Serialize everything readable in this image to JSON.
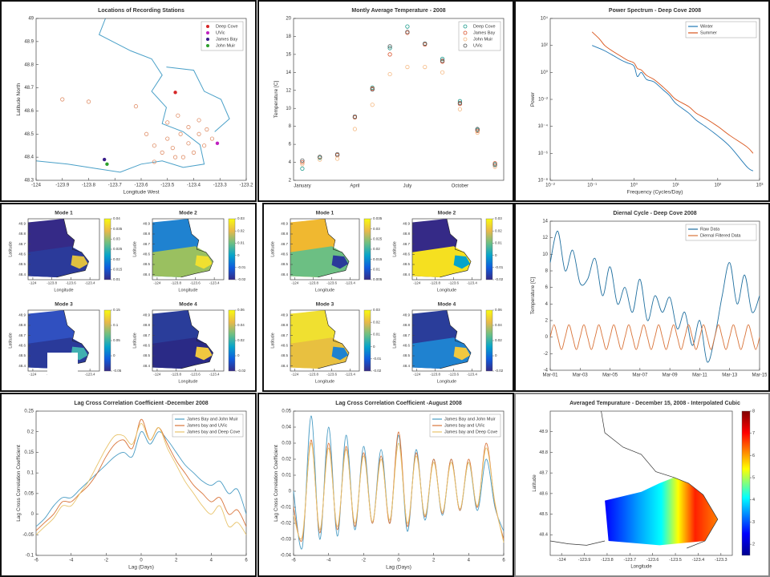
{
  "chart_data": [
    {
      "type": "scatter",
      "title": "Locations of Recording Stations",
      "xlabel": "Longitude West",
      "ylabel": "Latitude North",
      "xlim": [
        -124,
        -123.2
      ],
      "ylim": [
        48.3,
        49
      ],
      "xticks": [
        -124,
        -123.9,
        -123.8,
        -123.7,
        -123.6,
        -123.5,
        -123.4,
        -123.3,
        -123.2
      ],
      "yticks": [
        48.3,
        48.4,
        48.5,
        48.6,
        48.7,
        48.8,
        48.9,
        49
      ],
      "legend": "ne",
      "map": true,
      "series": [
        {
          "name": "Deep Cove",
          "color": "#d62728",
          "marker": "dot",
          "x": [
            -123.47
          ],
          "values": [
            48.68
          ]
        },
        {
          "name": "UVic",
          "color": "#c020c0",
          "marker": "dot",
          "x": [
            -123.31
          ],
          "values": [
            48.46
          ]
        },
        {
          "name": "James Bay",
          "color": "#3a1d8a",
          "marker": "dot",
          "x": [
            -123.74
          ],
          "values": [
            48.39
          ]
        },
        {
          "name": "John Muir",
          "color": "#2ca02c",
          "marker": "dot",
          "x": [
            -123.73
          ],
          "values": [
            48.37
          ]
        },
        {
          "color": "#e0906a",
          "marker": "ring",
          "x": [
            -123.9,
            -123.8,
            -123.62,
            -123.55,
            -123.5,
            -123.45,
            -123.42,
            -123.38,
            -123.35,
            -123.52,
            -123.48,
            -123.44,
            -123.4,
            -123.36,
            -123.58,
            -123.5,
            -123.46,
            -123.42,
            -123.38,
            -123.33,
            -123.55,
            -123.47
          ],
          "values": [
            48.65,
            48.64,
            48.62,
            48.45,
            48.48,
            48.5,
            48.46,
            48.5,
            48.52,
            48.42,
            48.44,
            48.4,
            48.42,
            48.45,
            48.5,
            48.55,
            48.58,
            48.53,
            48.56,
            48.48,
            48.38,
            48.4
          ]
        }
      ]
    },
    {
      "type": "scatter",
      "title": "Montly Average Temperature - 2008",
      "ylabel": "Temperature [C]",
      "categories": [
        "January",
        null,
        null,
        "April",
        null,
        null,
        "July",
        null,
        null,
        "October",
        null,
        null
      ],
      "ylim": [
        2,
        20
      ],
      "yticks": [
        2,
        4,
        6,
        8,
        10,
        12,
        14,
        16,
        18,
        20
      ],
      "legend": "ne",
      "series": [
        {
          "name": "Deep Cove",
          "color": "#1a9a8a",
          "marker": "ring",
          "values": [
            3.3,
            4.5,
            4.8,
            9,
            12.3,
            16.7,
            19.1,
            17.2,
            15.5,
            10.8,
            7.6,
            3.8
          ]
        },
        {
          "name": "James Bay",
          "color": "#d9502a",
          "marker": "ring",
          "values": [
            4,
            4.6,
            4.8,
            9,
            12.2,
            16,
            18.4,
            17.1,
            15.2,
            10.5,
            7.5,
            3.9
          ]
        },
        {
          "name": "John Muir",
          "color": "#f5b880",
          "marker": "ring",
          "values": [
            3.8,
            4.3,
            4.4,
            7.7,
            10.4,
            13.8,
            14.6,
            14.6,
            14,
            9.9,
            7.3,
            3.5
          ]
        },
        {
          "name": "UVic",
          "color": "#555555",
          "marker": "ring",
          "values": [
            4.2,
            4.6,
            4.9,
            9.1,
            12.1,
            16.9,
            18.5,
            17.2,
            15.3,
            10.6,
            7.7,
            3.7
          ]
        }
      ]
    },
    {
      "type": "line",
      "title": "Power Spectrum - Deep Cove 2008",
      "xlabel": "Frequency (Cycles/Day)",
      "ylabel": "Power",
      "xlog": true,
      "ylog": true,
      "xlim": [
        0.01,
        1000
      ],
      "ylim": [
        1e-08,
        10000
      ],
      "xticks": [
        {
          "value": 0.01,
          "label": "10⁻²"
        },
        {
          "value": 0.1,
          "label": "10⁻¹"
        },
        {
          "value": 1,
          "label": "10⁰"
        },
        {
          "value": 10,
          "label": "10¹"
        },
        {
          "value": 100,
          "label": "10²"
        },
        {
          "value": 1000,
          "label": "10³"
        }
      ],
      "yticks": [
        {
          "value": 1e-08,
          "label": "10⁻⁸"
        },
        {
          "value": 1e-06,
          "label": "10⁻⁶"
        },
        {
          "value": 0.0001,
          "label": "10⁻⁴"
        },
        {
          "value": 0.01,
          "label": "10⁻²"
        },
        {
          "value": 1,
          "label": "10⁰"
        },
        {
          "value": 100,
          "label": "10²"
        },
        {
          "value": 10000,
          "label": "10⁴"
        }
      ],
      "legend": "ne",
      "x": [
        0.1,
        0.15,
        0.2,
        0.3,
        0.5,
        0.7,
        1,
        1.2,
        1.5,
        2,
        3,
        5,
        7,
        10,
        20,
        30,
        50,
        100,
        200,
        500,
        700
      ],
      "series": [
        {
          "name": "Winter",
          "color": "#1f77b4",
          "values": [
            100,
            60,
            40,
            20,
            8,
            5,
            3,
            0.5,
            1,
            0.3,
            0.2,
            0.05,
            0.02,
            0.005,
            0.001,
            0.0003,
            0.0001,
            2e-05,
            3e-06,
            1e-07,
            5e-08
          ]
        },
        {
          "name": "Summer",
          "color": "#d9541a",
          "values": [
            1000,
            300,
            100,
            40,
            15,
            8,
            5,
            2,
            1.5,
            0.6,
            0.3,
            0.08,
            0.03,
            0.01,
            0.003,
            0.001,
            0.0004,
            0.0001,
            2e-05,
            3e-06,
            1e-06
          ]
        }
      ]
    },
    {
      "type": "modes",
      "xlabel": "Longitude",
      "ylabel": "Latitude",
      "xlim": [
        -124.05,
        -123.3
      ],
      "ylim": [
        48.35,
        48.95
      ],
      "xticks": [
        -124,
        -123.8,
        -123.6,
        -123.4
      ],
      "yticks": [
        48.4,
        48.5,
        48.6,
        48.7,
        48.8,
        48.9
      ],
      "modes": [
        {
          "title": "Mode 1",
          "cticks": [
            0.01,
            0.015,
            0.02,
            0.025,
            0.03,
            0.035,
            0.04
          ]
        },
        {
          "title": "Mode 2",
          "cticks": [
            -0.02,
            -0.01,
            0,
            0.01,
            0.02,
            0.03
          ]
        },
        {
          "title": "Mode 3",
          "cticks": [
            -0.05,
            0,
            0.05,
            0.1,
            0.15
          ]
        },
        {
          "title": "Mode 4",
          "cticks": [
            -0.02,
            0,
            0.02,
            0.04,
            0.06
          ]
        }
      ]
    },
    {
      "type": "modes",
      "xlabel": "Longitude",
      "ylabel": "Latitude",
      "xlim": [
        -124.05,
        -123.3
      ],
      "ylim": [
        48.35,
        48.95
      ],
      "xticks": [
        -124,
        -123.8,
        -123.6,
        -123.4
      ],
      "yticks": [
        48.4,
        48.5,
        48.6,
        48.7,
        48.8,
        48.9
      ],
      "modes": [
        {
          "title": "Mode 1",
          "cticks": [
            0.005,
            0.01,
            0.015,
            0.02,
            0.025,
            0.03,
            0.035
          ]
        },
        {
          "title": "Mode 2",
          "cticks": [
            -0.02,
            -0.01,
            0,
            0.01,
            0.02,
            0.03
          ]
        },
        {
          "title": "Mode 3",
          "cticks": [
            -0.02,
            -0.01,
            0,
            0.01,
            0.02,
            0.03
          ]
        },
        {
          "title": "Mode 4",
          "cticks": [
            -0.02,
            0,
            0.02,
            0.04,
            0.06
          ]
        }
      ]
    },
    {
      "type": "line",
      "title": "Diernal Cycle - Deep Cove 2008",
      "ylabel": "Temperature [C]",
      "xlim": [
        1,
        15
      ],
      "ylim": [
        -4,
        14
      ],
      "xticks": [
        {
          "value": 1,
          "label": "Mar-01"
        },
        {
          "value": 3,
          "label": "Mar-03"
        },
        {
          "value": 5,
          "label": "Mar-05"
        },
        {
          "value": 7,
          "label": "Mar-07"
        },
        {
          "value": 9,
          "label": "Mar-09"
        },
        {
          "value": 11,
          "label": "Mar-11"
        },
        {
          "value": 13,
          "label": "Mar-13"
        },
        {
          "value": 15,
          "label": "Mar-15"
        }
      ],
      "yticks": [
        -4,
        -2,
        0,
        2,
        4,
        6,
        8,
        10,
        12,
        14
      ],
      "legend": "ne",
      "series": [
        {
          "name": "Raw Data",
          "color": "#1f6f9f",
          "x": [
            1,
            1.5,
            2,
            2.5,
            3,
            3.5,
            4,
            4.5,
            5,
            5.5,
            6,
            6.5,
            7,
            7.5,
            8,
            8.5,
            9,
            9.5,
            10,
            10.5,
            11,
            11.5,
            12,
            12.5,
            13,
            13.5,
            14,
            14.5,
            15
          ],
          "values": [
            9,
            12.8,
            8,
            10.5,
            6.5,
            7,
            9.5,
            5,
            8.5,
            4,
            6,
            3,
            7,
            2,
            5,
            3,
            4.8,
            1,
            3,
            -1,
            2,
            -3,
            0,
            5,
            9,
            4,
            7.5,
            3,
            5
          ]
        },
        {
          "name": "Diernal Filtered Data",
          "color": "#d9743a",
          "x": [
            1,
            1.25,
            1.5,
            1.75,
            2,
            2.25,
            2.5,
            2.75,
            3,
            3.25,
            3.5,
            3.75,
            4,
            4.25,
            4.5,
            4.75,
            5,
            5.25,
            5.5,
            5.75,
            6,
            6.25,
            6.5,
            6.75,
            7,
            7.25,
            7.5,
            7.75,
            8,
            8.25,
            8.5,
            8.75,
            9,
            9.25,
            9.5,
            9.75,
            10,
            10.25,
            10.5,
            10.75,
            11,
            11.25,
            11.5,
            11.75,
            12,
            12.25,
            12.5,
            12.75,
            13,
            13.25,
            13.5,
            13.75,
            14,
            14.25,
            14.5,
            14.75,
            15
          ],
          "values": [
            0,
            1.5,
            0,
            -1.5,
            0,
            1.5,
            0,
            -1.5,
            0,
            1.5,
            0,
            -1.5,
            0,
            1.5,
            0,
            -1.5,
            0,
            1.5,
            0,
            -1.5,
            0,
            1.5,
            0,
            -1.5,
            0,
            1.5,
            0,
            -1.5,
            0,
            1.5,
            0,
            -1.5,
            0,
            1.5,
            0,
            -1.5,
            0,
            1.5,
            0,
            -1.5,
            0,
            1.5,
            0,
            -1.5,
            0,
            1.5,
            0,
            -1.5,
            0,
            1.5,
            0,
            -1.5,
            0,
            1.5,
            0,
            -1.5,
            0
          ]
        }
      ]
    },
    {
      "type": "line",
      "title": "Lag Cross Correlation Coefficient -December 2008",
      "xlabel": "Lag (Days)",
      "ylabel": "Lag Cross Correlation Coefficient",
      "xlim": [
        -6,
        6
      ],
      "ylim": [
        -0.1,
        0.25
      ],
      "xticks": [
        -6,
        -4,
        -2,
        0,
        2,
        4,
        6
      ],
      "yticks": [
        -0.1,
        -0.05,
        0,
        0.05,
        0.1,
        0.15,
        0.2,
        0.25
      ],
      "legend": "ne",
      "x": [
        -6,
        -5.5,
        -5,
        -4.5,
        -4,
        -3.5,
        -3,
        -2.5,
        -2,
        -1.5,
        -1,
        -0.5,
        0,
        0.5,
        1,
        1.5,
        2,
        2.5,
        3,
        3.5,
        4,
        4.5,
        5,
        5.5,
        6
      ],
      "series": [
        {
          "name": "James Bay and John Muir",
          "color": "#4a9cc4",
          "values": [
            -0.03,
            -0.01,
            0.02,
            0.04,
            0.04,
            0.06,
            0.08,
            0.1,
            0.12,
            0.14,
            0.15,
            0.14,
            0.2,
            0.17,
            0.2,
            0.18,
            0.15,
            0.12,
            0.1,
            0.08,
            0.07,
            0.08,
            0.05,
            0.06,
            0
          ]
        },
        {
          "name": "James bay and UVic",
          "color": "#d9743a",
          "values": [
            -0.04,
            -0.02,
            0,
            0.03,
            0.03,
            0.05,
            0.07,
            0.1,
            0.14,
            0.17,
            0.18,
            0.16,
            0.23,
            0.18,
            0.21,
            0.17,
            0.13,
            0.1,
            0.07,
            0.05,
            0.03,
            0.04,
            0,
            0.01,
            -0.03
          ]
        },
        {
          "name": "James bay and Deep Cove",
          "color": "#e8c36a",
          "values": [
            -0.05,
            -0.03,
            -0.01,
            0.02,
            0.02,
            0.05,
            0.08,
            0.12,
            0.16,
            0.19,
            0.19,
            0.17,
            0.22,
            0.18,
            0.21,
            0.16,
            0.12,
            0.08,
            0.05,
            0.02,
            0,
            0.02,
            -0.03,
            -0.02,
            -0.05
          ]
        }
      ]
    },
    {
      "type": "line",
      "title": "Lag Cross Correlation Coefficient -August 2008",
      "xlabel": "Lag (Days)",
      "ylabel": "Lag Cross Correlation Coefficient",
      "xlim": [
        -6,
        6
      ],
      "ylim": [
        -0.04,
        0.05
      ],
      "xticks": [
        -6,
        -4,
        -2,
        0,
        2,
        4,
        6
      ],
      "yticks": [
        -0.04,
        -0.03,
        -0.02,
        -0.01,
        0,
        0.01,
        0.02,
        0.03,
        0.04,
        0.05
      ],
      "legend": "ne",
      "x": [
        -6,
        -5.5,
        -5,
        -4.5,
        -4,
        -3.5,
        -3,
        -2.5,
        -2,
        -1.5,
        -1,
        -0.5,
        0,
        0.5,
        1,
        1.5,
        2,
        2.5,
        3,
        3.5,
        4,
        4.5,
        5,
        5.5,
        6
      ],
      "series": [
        {
          "name": "James Bay and John Muir",
          "color": "#4a9cc4",
          "values": [
            0,
            -0.035,
            0.047,
            -0.03,
            0.04,
            -0.028,
            0.035,
            -0.024,
            0.028,
            -0.02,
            0.026,
            -0.02,
            0.035,
            -0.025,
            0.026,
            -0.018,
            0.02,
            -0.015,
            0.02,
            -0.012,
            0.018,
            -0.012,
            0.02,
            -0.01,
            -0.025
          ]
        },
        {
          "name": "James bay and UVic",
          "color": "#d9743a",
          "values": [
            -0.01,
            -0.03,
            0.032,
            -0.026,
            0.03,
            -0.024,
            0.028,
            -0.022,
            0.024,
            -0.02,
            0.022,
            -0.02,
            0.037,
            -0.022,
            0.024,
            -0.016,
            0.02,
            -0.014,
            0.02,
            -0.012,
            0.02,
            -0.01,
            0.03,
            -0.008,
            -0.03
          ]
        },
        {
          "name": "James bay and Deep Cove",
          "color": "#e8c36a",
          "values": [
            -0.015,
            -0.028,
            0.03,
            -0.024,
            0.027,
            -0.022,
            0.026,
            -0.02,
            0.022,
            -0.019,
            0.02,
            -0.018,
            0.03,
            -0.02,
            0.022,
            -0.015,
            0.018,
            -0.013,
            0.018,
            -0.011,
            0.018,
            -0.009,
            0.027,
            -0.007,
            -0.032
          ]
        }
      ]
    },
    {
      "type": "heatmap",
      "title": "Averaged Tempurature - December 15, 2008 - Interpolated Cubic",
      "xlabel": "Longitude",
      "ylabel": "Latitude",
      "xlim": [
        -124.05,
        -123.25
      ],
      "ylim": [
        48.3,
        49
      ],
      "xticks": [
        -124,
        -123.9,
        -123.8,
        -123.7,
        -123.6,
        -123.5,
        -123.4,
        -123.3
      ],
      "yticks": [
        48.4,
        48.5,
        48.6,
        48.7,
        48.8,
        48.9
      ],
      "clim": [
        1.5,
        8
      ],
      "cticks": [
        2,
        3,
        4,
        5,
        6,
        7,
        8
      ]
    }
  ]
}
